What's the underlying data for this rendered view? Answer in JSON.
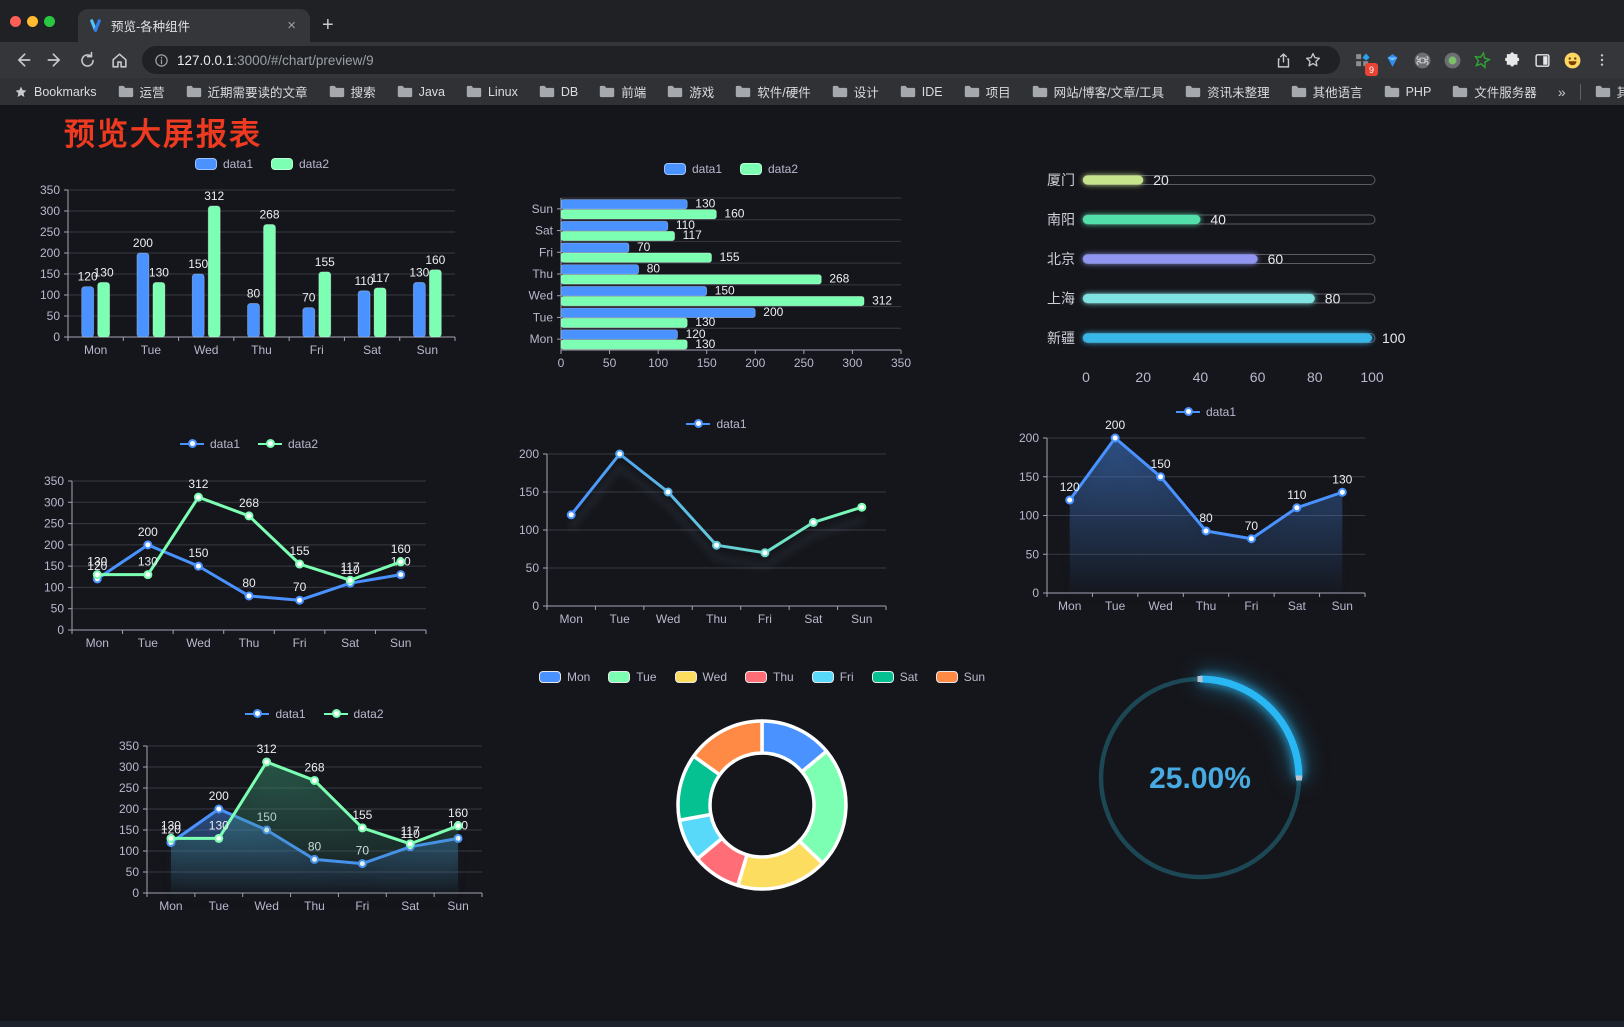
{
  "browser": {
    "traffic_lights": [
      "#ff5f57",
      "#febc2e",
      "#28c840"
    ],
    "tab": {
      "title": "预览-各种组件",
      "close": "×",
      "new_tab": "+"
    },
    "url_host": "127.0.0.1",
    "url_rest": ":3000/#/chart/preview/9",
    "extension_badge": "9",
    "bookmarks_label": "Bookmarks",
    "bookmarks": [
      "运营",
      "近期需要读的文章",
      "搜索",
      "Java",
      "Linux",
      "DB",
      "前端",
      "游戏",
      "软件/硬件",
      "设计",
      "IDE",
      "项目",
      "网站/博客/文章/工具",
      "资讯未整理",
      "其他语言",
      "PHP",
      "文件服务器"
    ],
    "bookmarks_overflow": "»",
    "other_bookmarks": "其他书签",
    "extensions": [
      "grid-apps",
      "gem",
      "command",
      "record",
      "green-star",
      "puzzle",
      "split-view",
      "emoji",
      "menu"
    ]
  },
  "page": {
    "title": "预览大屏报表",
    "title_color": "#ee3a20"
  },
  "theme": {
    "background": "#15161b",
    "grid": "#383944",
    "axis": "#a2a4b4",
    "tick_text": "#b9b8ce",
    "value_label": "#eceef2",
    "palette": [
      "#4992ff",
      "#7cffb2",
      "#fddd60",
      "#ff6e76",
      "#58d9f9",
      "#05c091",
      "#ff8a45"
    ]
  },
  "chart_data": [
    {
      "id": "bar-grouped",
      "type": "bar",
      "categories": [
        "Mon",
        "Tue",
        "Wed",
        "Thu",
        "Fri",
        "Sat",
        "Sun"
      ],
      "series": [
        {
          "name": "data1",
          "color": "#4992ff",
          "values": [
            120,
            200,
            150,
            80,
            70,
            110,
            130
          ]
        },
        {
          "name": "data2",
          "color": "#7cffb2",
          "values": [
            130,
            130,
            312,
            268,
            155,
            117,
            160
          ]
        }
      ],
      "ylim": [
        0,
        350
      ],
      "ytick": 50
    },
    {
      "id": "bar-horizontal",
      "type": "bar-horizontal",
      "categories": [
        "Mon",
        "Tue",
        "Wed",
        "Thu",
        "Fri",
        "Sat",
        "Sun"
      ],
      "display_top_to_bottom": [
        "Sun",
        "Sat",
        "Fri",
        "Thu",
        "Wed",
        "Tue",
        "Mon"
      ],
      "series": [
        {
          "name": "data1",
          "color": "#4992ff",
          "values": [
            120,
            200,
            150,
            80,
            70,
            110,
            130
          ]
        },
        {
          "name": "data2",
          "color": "#7cffb2",
          "values": [
            130,
            130,
            312,
            268,
            155,
            117,
            160
          ]
        }
      ],
      "xlim": [
        0,
        350
      ],
      "xtick": 50
    },
    {
      "id": "progress-bars",
      "type": "progress",
      "items": [
        {
          "label": "厦门",
          "value": 20,
          "color": "#c6e48b"
        },
        {
          "label": "南阳",
          "value": 40,
          "color": "#53dfa9"
        },
        {
          "label": "北京",
          "value": 60,
          "color": "#9095f0"
        },
        {
          "label": "上海",
          "value": 80,
          "color": "#7fe3e1"
        },
        {
          "label": "新疆",
          "value": 100,
          "color": "#38b6e8"
        }
      ],
      "xticks": [
        0,
        20,
        40,
        60,
        80,
        100
      ]
    },
    {
      "id": "line-two",
      "type": "line",
      "categories": [
        "Mon",
        "Tue",
        "Wed",
        "Thu",
        "Fri",
        "Sat",
        "Sun"
      ],
      "series": [
        {
          "name": "data1",
          "color": "#4992ff",
          "values": [
            120,
            200,
            150,
            80,
            70,
            110,
            130
          ]
        },
        {
          "name": "data2",
          "color": "#7cffb2",
          "values": [
            130,
            130,
            312,
            268,
            155,
            117,
            160
          ]
        }
      ],
      "ylim": [
        0,
        350
      ],
      "ytick": 50,
      "point_labels": true
    },
    {
      "id": "line-gradient",
      "type": "line",
      "categories": [
        "Mon",
        "Tue",
        "Wed",
        "Thu",
        "Fri",
        "Sat",
        "Sun"
      ],
      "series": [
        {
          "name": "data1",
          "color": "#4992ff",
          "color_end": "#7cffb2",
          "values": [
            120,
            200,
            150,
            80,
            70,
            110,
            130
          ]
        }
      ],
      "ylim": [
        0,
        200
      ],
      "ytick": 50,
      "point_labels": false,
      "shadow": true
    },
    {
      "id": "line-area",
      "type": "line",
      "categories": [
        "Mon",
        "Tue",
        "Wed",
        "Thu",
        "Fri",
        "Sat",
        "Sun"
      ],
      "series": [
        {
          "name": "data1",
          "color": "#4992ff",
          "values": [
            120,
            200,
            150,
            80,
            70,
            110,
            130
          ],
          "area": true
        }
      ],
      "ylim": [
        0,
        200
      ],
      "ytick": 50,
      "point_labels": true
    },
    {
      "id": "line-two-area",
      "type": "line",
      "categories": [
        "Mon",
        "Tue",
        "Wed",
        "Thu",
        "Fri",
        "Sat",
        "Sun"
      ],
      "series": [
        {
          "name": "data1",
          "color": "#4992ff",
          "values": [
            120,
            200,
            150,
            80,
            70,
            110,
            130
          ],
          "area": true
        },
        {
          "name": "data2",
          "color": "#7cffb2",
          "values": [
            130,
            130,
            312,
            268,
            155,
            117,
            160
          ],
          "area": true,
          "area_color": "60,160,120"
        }
      ],
      "ylim": [
        0,
        350
      ],
      "ytick": 50,
      "point_labels": true
    },
    {
      "id": "donut",
      "type": "donut",
      "items": [
        {
          "label": "Mon",
          "value": 120,
          "color": "#4992ff"
        },
        {
          "label": "Tue",
          "value": 200,
          "color": "#7cffb2"
        },
        {
          "label": "Wed",
          "value": 150,
          "color": "#fddd60"
        },
        {
          "label": "Thu",
          "value": 80,
          "color": "#ff6e76"
        },
        {
          "label": "Fri",
          "value": 70,
          "color": "#58d9f9"
        },
        {
          "label": "Sat",
          "value": 110,
          "color": "#05c091"
        },
        {
          "label": "Sun",
          "value": 130,
          "color": "#ff8a45"
        }
      ]
    },
    {
      "id": "gauge",
      "type": "gauge",
      "label": "25.00%",
      "percent": 25,
      "arc_color": "#2ab8f5",
      "track_color": "#1c4754",
      "text_color": "#47aae1"
    }
  ]
}
